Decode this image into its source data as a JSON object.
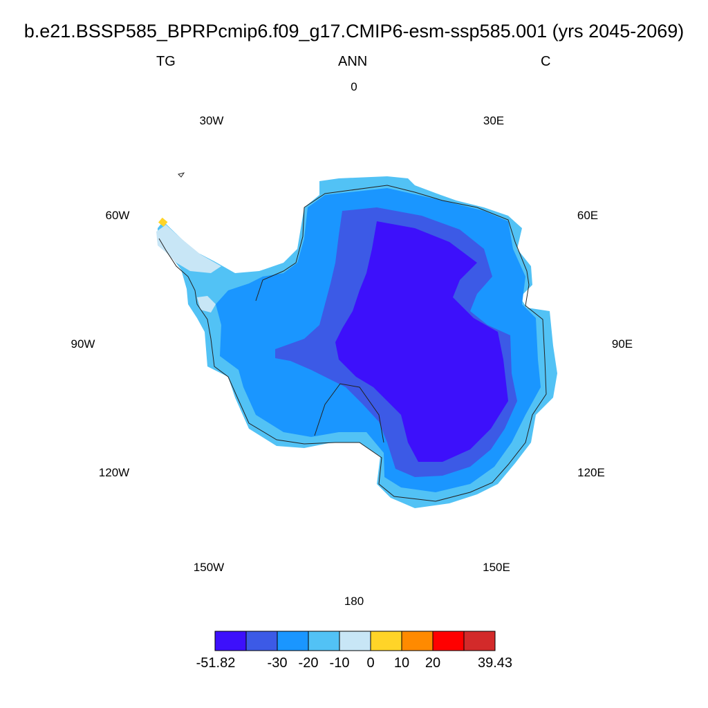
{
  "title": "b.e21.BSSP585_BPRPcmip6.f09_g17.CMIP6-esm-ssp585.001 (yrs 2045-2069)",
  "variable": "TG",
  "season": "ANN",
  "units": "C",
  "longitude_labels": [
    "0",
    "30E",
    "60E",
    "90E",
    "120E",
    "150E",
    "180",
    "150W",
    "120W",
    "90W",
    "60W",
    "30W"
  ],
  "colorbar": {
    "colors": [
      "#3d10fb",
      "#3c5ae6",
      "#1a96ff",
      "#52c2f5",
      "#c8e6f6",
      "#ffd428",
      "#ff8a00",
      "#ff0000",
      "#d32a2a"
    ],
    "labels": [
      "-51.82",
      "-30",
      "-20",
      "-10",
      "0",
      "10",
      "20",
      "39.43"
    ]
  },
  "colors": {
    "ice_coast": "#52c2f5",
    "margin": "#1a96ff",
    "inner": "#3c5ae6",
    "plateau": "#3d10fb",
    "peninsula_tip": "#c8e6f6",
    "warm_cell": "#ffd428"
  }
}
